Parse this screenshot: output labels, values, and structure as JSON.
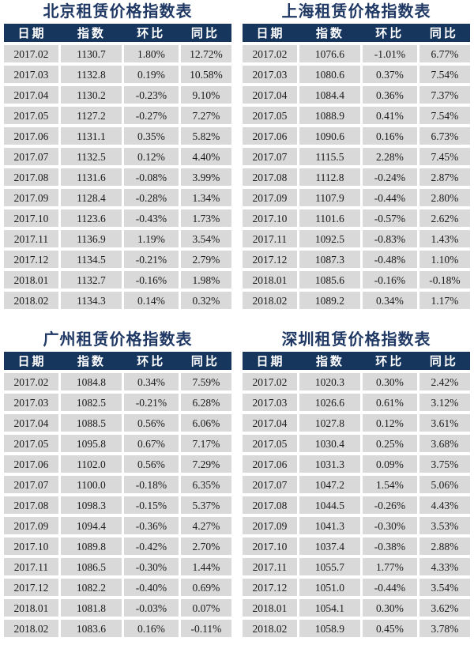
{
  "colors": {
    "title_text": "#1f3864",
    "header_bg": "#17365d",
    "header_text": "#ffffff",
    "row_bg": "#d9d9d9",
    "row_text": "#1a1a1a",
    "page_bg": "#ffffff"
  },
  "tables": [
    {
      "title": "北京租赁价格指数表",
      "columns": [
        "日期",
        "指数",
        "环比",
        "同比"
      ],
      "rows": [
        [
          "2017.02",
          "1130.7",
          "1.80%",
          "12.72%"
        ],
        [
          "2017.03",
          "1132.8",
          "0.19%",
          "10.58%"
        ],
        [
          "2017.04",
          "1130.2",
          "-0.23%",
          "9.10%"
        ],
        [
          "2017.05",
          "1127.2",
          "-0.27%",
          "7.27%"
        ],
        [
          "2017.06",
          "1131.1",
          "0.35%",
          "5.82%"
        ],
        [
          "2017.07",
          "1132.5",
          "0.12%",
          "4.40%"
        ],
        [
          "2017.08",
          "1131.6",
          "-0.08%",
          "3.99%"
        ],
        [
          "2017.09",
          "1128.4",
          "-0.28%",
          "1.34%"
        ],
        [
          "2017.10",
          "1123.6",
          "-0.43%",
          "1.73%"
        ],
        [
          "2017.11",
          "1136.9",
          "1.19%",
          "3.54%"
        ],
        [
          "2017.12",
          "1134.5",
          "-0.21%",
          "2.79%"
        ],
        [
          "2018.01",
          "1132.7",
          "-0.16%",
          "1.98%"
        ],
        [
          "2018.02",
          "1134.3",
          "0.14%",
          "0.32%"
        ]
      ]
    },
    {
      "title": "上海租赁价格指数表",
      "columns": [
        "日期",
        "指数",
        "环比",
        "同比"
      ],
      "rows": [
        [
          "2017.02",
          "1076.6",
          "-1.01%",
          "6.77%"
        ],
        [
          "2017.03",
          "1080.6",
          "0.37%",
          "7.54%"
        ],
        [
          "2017.04",
          "1084.4",
          "0.36%",
          "7.37%"
        ],
        [
          "2017.05",
          "1088.9",
          "0.41%",
          "7.54%"
        ],
        [
          "2017.06",
          "1090.6",
          "0.16%",
          "6.73%"
        ],
        [
          "2017.07",
          "1115.5",
          "2.28%",
          "7.45%"
        ],
        [
          "2017.08",
          "1112.8",
          "-0.24%",
          "2.87%"
        ],
        [
          "2017.09",
          "1107.9",
          "-0.44%",
          "2.80%"
        ],
        [
          "2017.10",
          "1101.6",
          "-0.57%",
          "2.62%"
        ],
        [
          "2017.11",
          "1092.5",
          "-0.83%",
          "1.43%"
        ],
        [
          "2017.12",
          "1087.3",
          "-0.48%",
          "1.10%"
        ],
        [
          "2018.01",
          "1085.6",
          "-0.16%",
          "-0.18%"
        ],
        [
          "2018.02",
          "1089.2",
          "0.34%",
          "1.17%"
        ]
      ]
    },
    {
      "title": "广州租赁价格指数表",
      "columns": [
        "日期",
        "指数",
        "环比",
        "同比"
      ],
      "rows": [
        [
          "2017.02",
          "1084.8",
          "0.34%",
          "7.59%"
        ],
        [
          "2017.03",
          "1082.5",
          "-0.21%",
          "6.28%"
        ],
        [
          "2017.04",
          "1088.5",
          "0.56%",
          "6.06%"
        ],
        [
          "2017.05",
          "1095.8",
          "0.67%",
          "7.17%"
        ],
        [
          "2017.06",
          "1102.0",
          "0.56%",
          "7.29%"
        ],
        [
          "2017.07",
          "1100.0",
          "-0.18%",
          "6.35%"
        ],
        [
          "2017.08",
          "1098.3",
          "-0.15%",
          "5.37%"
        ],
        [
          "2017.09",
          "1094.4",
          "-0.36%",
          "4.27%"
        ],
        [
          "2017.10",
          "1089.8",
          "-0.42%",
          "2.70%"
        ],
        [
          "2017.11",
          "1086.5",
          "-0.30%",
          "1.44%"
        ],
        [
          "2017.12",
          "1082.2",
          "-0.40%",
          "0.69%"
        ],
        [
          "2018.01",
          "1081.8",
          "-0.03%",
          "0.07%"
        ],
        [
          "2018.02",
          "1083.6",
          "0.16%",
          "-0.11%"
        ]
      ]
    },
    {
      "title": "深圳租赁价格指数表",
      "columns": [
        "日期",
        "指数",
        "环比",
        "同比"
      ],
      "rows": [
        [
          "2017.02",
          "1020.3",
          "0.30%",
          "2.42%"
        ],
        [
          "2017.03",
          "1026.6",
          "0.61%",
          "3.12%"
        ],
        [
          "2017.04",
          "1027.8",
          "0.12%",
          "3.61%"
        ],
        [
          "2017.05",
          "1030.4",
          "0.25%",
          "3.68%"
        ],
        [
          "2017.06",
          "1031.3",
          "0.09%",
          "3.75%"
        ],
        [
          "2017.07",
          "1047.2",
          "1.54%",
          "5.06%"
        ],
        [
          "2017.08",
          "1044.5",
          "-0.26%",
          "4.43%"
        ],
        [
          "2017.09",
          "1041.3",
          "-0.30%",
          "3.53%"
        ],
        [
          "2017.10",
          "1037.4",
          "-0.38%",
          "2.88%"
        ],
        [
          "2017.11",
          "1055.7",
          "1.77%",
          "4.33%"
        ],
        [
          "2017.12",
          "1051.0",
          "-0.44%",
          "3.54%"
        ],
        [
          "2018.01",
          "1054.1",
          "0.30%",
          "3.62%"
        ],
        [
          "2018.02",
          "1058.9",
          "0.45%",
          "3.78%"
        ]
      ]
    }
  ]
}
